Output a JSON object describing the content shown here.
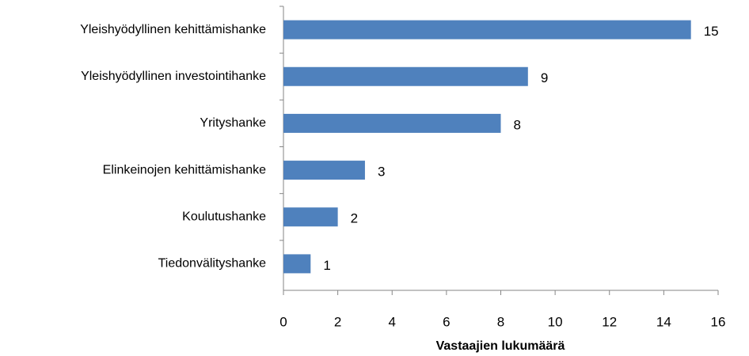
{
  "chart_data": {
    "type": "bar",
    "orientation": "horizontal",
    "categories": [
      "Yleishyödyllinen kehittämishanke",
      "Yleishyödyllinen investointihanke",
      "Yrityshanke",
      "Elinkeinojen kehittämishanke",
      "Koulutushanke",
      "Tiedonvälityshanke"
    ],
    "values": [
      15,
      9,
      8,
      3,
      2,
      1
    ],
    "color": "#4f81bd",
    "xlabel": "Vastaajien lukumäärä",
    "xlim": [
      0,
      16
    ],
    "xticks": [
      0,
      2,
      4,
      6,
      8,
      10,
      12,
      14,
      16
    ],
    "grid": false
  }
}
